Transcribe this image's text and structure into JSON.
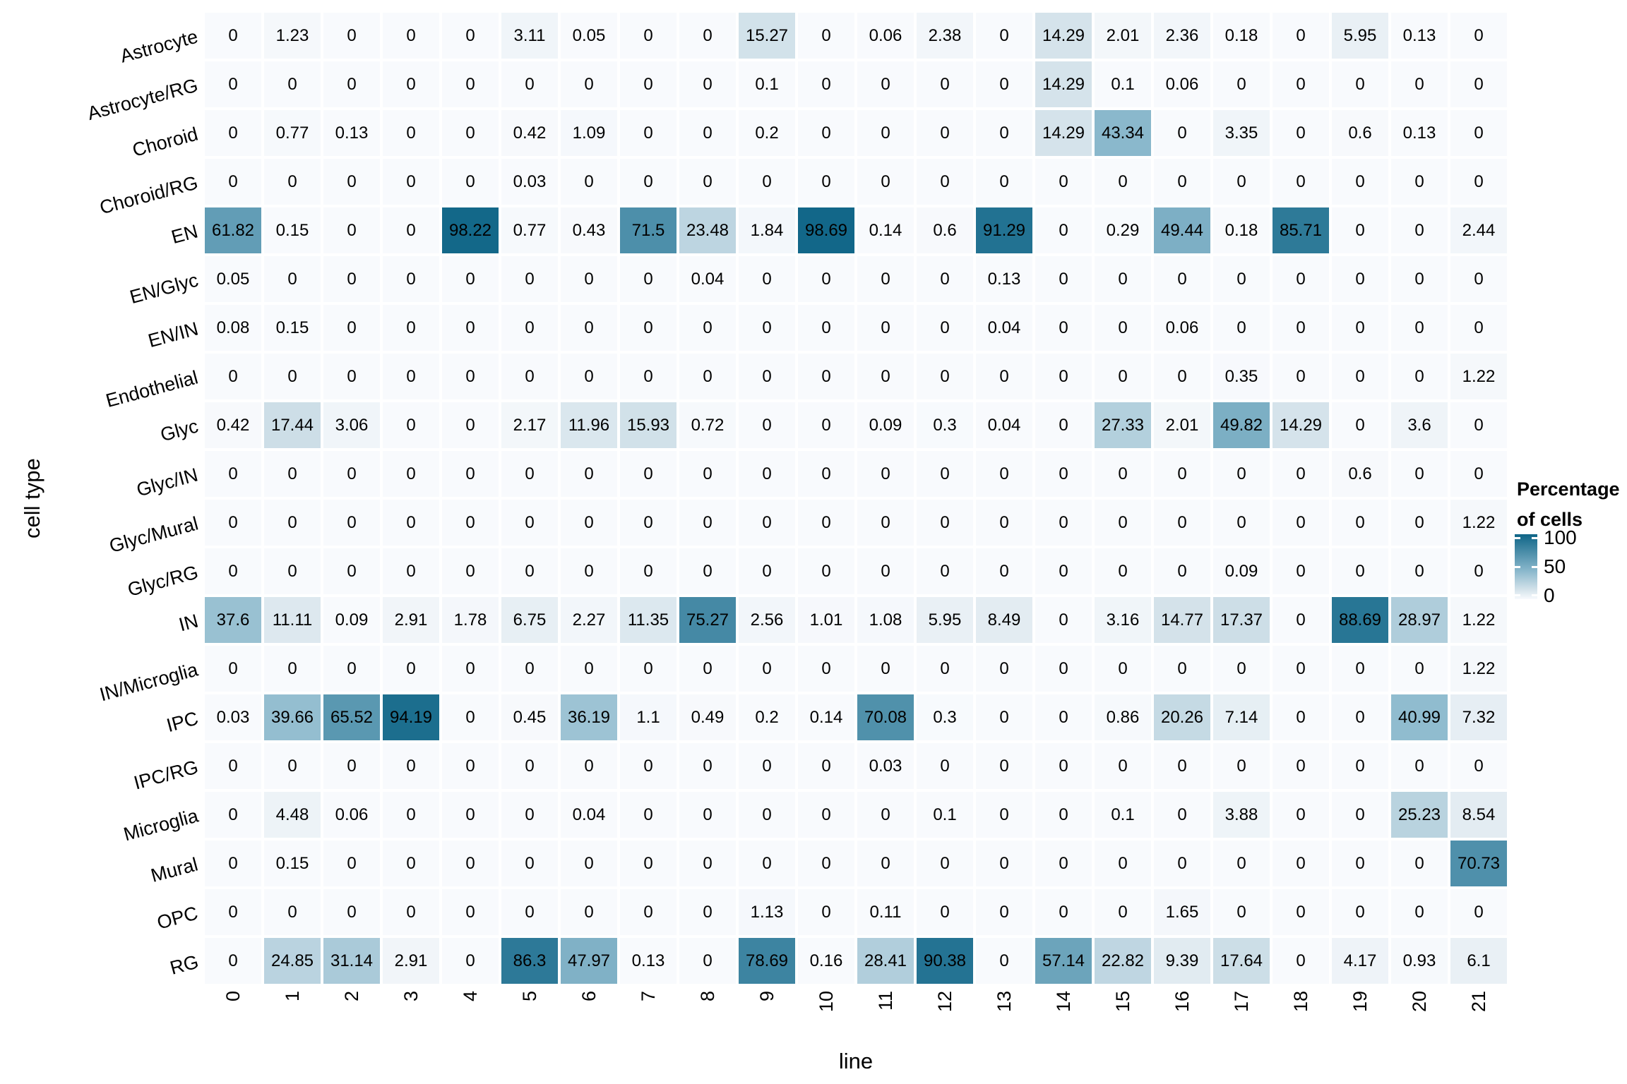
{
  "chart_data": {
    "type": "heatmap",
    "title": "",
    "xlabel": "line",
    "ylabel": "cell type",
    "x_categories": [
      "0",
      "1",
      "2",
      "3",
      "4",
      "5",
      "6",
      "7",
      "8",
      "9",
      "10",
      "11",
      "12",
      "13",
      "14",
      "15",
      "16",
      "17",
      "18",
      "19",
      "20",
      "21"
    ],
    "y_categories": [
      "Astrocyte",
      "Astrocyte/RG",
      "Choroid",
      "Choroid/RG",
      "EN",
      "EN/Glyc",
      "EN/IN",
      "Endothelial",
      "Glyc",
      "Glyc/IN",
      "Glyc/Mural",
      "Glyc/RG",
      "IN",
      "IN/Microglia",
      "IPC",
      "IPC/RG",
      "Microglia",
      "Mural",
      "OPC",
      "RG"
    ],
    "values": [
      [
        0,
        1.23,
        0,
        0,
        0,
        3.11,
        0.05,
        0,
        0,
        15.27,
        0,
        0.06,
        2.38,
        0,
        14.29,
        2.01,
        2.36,
        0.18,
        0,
        5.95,
        0.13,
        0
      ],
      [
        0,
        0,
        0,
        0,
        0,
        0,
        0,
        0,
        0,
        0.1,
        0,
        0,
        0,
        0,
        14.29,
        0.1,
        0.06,
        0,
        0,
        0,
        0,
        0
      ],
      [
        0,
        0.77,
        0.13,
        0,
        0,
        0.42,
        1.09,
        0,
        0,
        0.2,
        0,
        0,
        0,
        0,
        14.29,
        43.34,
        0,
        3.35,
        0,
        0.6,
        0.13,
        0
      ],
      [
        0,
        0,
        0,
        0,
        0,
        0.03,
        0,
        0,
        0,
        0,
        0,
        0,
        0,
        0,
        0,
        0,
        0,
        0,
        0,
        0,
        0,
        0
      ],
      [
        61.82,
        0.15,
        0,
        0,
        98.22,
        0.77,
        0.43,
        71.5,
        23.48,
        1.84,
        98.69,
        0.14,
        0.6,
        91.29,
        0,
        0.29,
        49.44,
        0.18,
        85.71,
        0,
        0,
        2.44
      ],
      [
        0.05,
        0,
        0,
        0,
        0,
        0,
        0,
        0,
        0.04,
        0,
        0,
        0,
        0,
        0.13,
        0,
        0,
        0,
        0,
        0,
        0,
        0,
        0
      ],
      [
        0.08,
        0.15,
        0,
        0,
        0,
        0,
        0,
        0,
        0,
        0,
        0,
        0,
        0,
        0.04,
        0,
        0,
        0.06,
        0,
        0,
        0,
        0,
        0
      ],
      [
        0,
        0,
        0,
        0,
        0,
        0,
        0,
        0,
        0,
        0,
        0,
        0,
        0,
        0,
        0,
        0,
        0,
        0.35,
        0,
        0,
        0,
        1.22
      ],
      [
        0.42,
        17.44,
        3.06,
        0,
        0,
        2.17,
        11.96,
        15.93,
        0.72,
        0,
        0,
        0.09,
        0.3,
        0.04,
        0,
        27.33,
        2.01,
        49.82,
        14.29,
        0,
        3.6,
        0
      ],
      [
        0,
        0,
        0,
        0,
        0,
        0,
        0,
        0,
        0,
        0,
        0,
        0,
        0,
        0,
        0,
        0,
        0,
        0,
        0,
        0.6,
        0,
        0
      ],
      [
        0,
        0,
        0,
        0,
        0,
        0,
        0,
        0,
        0,
        0,
        0,
        0,
        0,
        0,
        0,
        0,
        0,
        0,
        0,
        0,
        0,
        1.22
      ],
      [
        0,
        0,
        0,
        0,
        0,
        0,
        0,
        0,
        0,
        0,
        0,
        0,
        0,
        0,
        0,
        0,
        0,
        0.09,
        0,
        0,
        0,
        0
      ],
      [
        37.6,
        11.11,
        0.09,
        2.91,
        1.78,
        6.75,
        2.27,
        11.35,
        75.27,
        2.56,
        1.01,
        1.08,
        5.95,
        8.49,
        0,
        3.16,
        14.77,
        17.37,
        0,
        88.69,
        28.97,
        1.22
      ],
      [
        0,
        0,
        0,
        0,
        0,
        0,
        0,
        0,
        0,
        0,
        0,
        0,
        0,
        0,
        0,
        0,
        0,
        0,
        0,
        0,
        0,
        1.22
      ],
      [
        0.03,
        39.66,
        65.52,
        94.19,
        0,
        0.45,
        36.19,
        1.1,
        0.49,
        0.2,
        0.14,
        70.08,
        0.3,
        0,
        0,
        0.86,
        20.26,
        7.14,
        0,
        0,
        40.99,
        7.32
      ],
      [
        0,
        0,
        0,
        0,
        0,
        0,
        0,
        0,
        0,
        0,
        0,
        0.03,
        0,
        0,
        0,
        0,
        0,
        0,
        0,
        0,
        0,
        0
      ],
      [
        0,
        4.48,
        0.06,
        0,
        0,
        0,
        0.04,
        0,
        0,
        0,
        0,
        0,
        0.1,
        0,
        0,
        0.1,
        0,
        3.88,
        0,
        0,
        25.23,
        8.54
      ],
      [
        0,
        0.15,
        0,
        0,
        0,
        0,
        0,
        0,
        0,
        0,
        0,
        0,
        0,
        0,
        0,
        0,
        0,
        0,
        0,
        0,
        0,
        70.73
      ],
      [
        0,
        0,
        0,
        0,
        0,
        0,
        0,
        0,
        0,
        1.13,
        0,
        0.11,
        0,
        0,
        0,
        0,
        1.65,
        0,
        0,
        0,
        0,
        0
      ],
      [
        0,
        24.85,
        31.14,
        2.91,
        0,
        86.3,
        47.97,
        0.13,
        0,
        78.69,
        0.16,
        28.41,
        90.38,
        0,
        57.14,
        22.82,
        9.39,
        17.64,
        0,
        4.17,
        0.93,
        6.1
      ]
    ],
    "value_range": [
      0,
      100
    ],
    "grid": "white gaps between tiles",
    "legend": {
      "position": "right",
      "title_line1": "Percentage",
      "title_line2": "of cells",
      "tick_labels": [
        "100",
        "50",
        "0"
      ],
      "tick_values": [
        100,
        50,
        0
      ]
    },
    "color_scale": {
      "stops": [
        [
          0,
          "#f8fafd"
        ],
        [
          15,
          "#d3e2ea"
        ],
        [
          43.4,
          "#8ab8cc"
        ],
        [
          100,
          "#0f6587"
        ]
      ],
      "text_color": "#000000",
      "background": "#ffffff"
    }
  }
}
